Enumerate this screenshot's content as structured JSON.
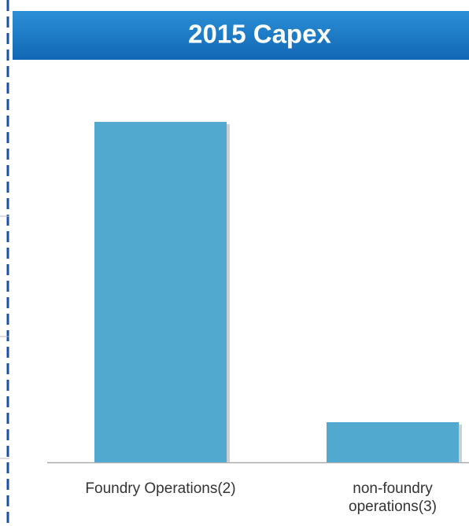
{
  "chart_data": {
    "type": "bar",
    "title": "2015 Capex",
    "categories": [
      "Foundry Operations(2)",
      "non-foundry operations(3)"
    ],
    "values": [
      433,
      51
    ],
    "color": "#52a9d0",
    "ylim": [
      0,
      500
    ]
  }
}
